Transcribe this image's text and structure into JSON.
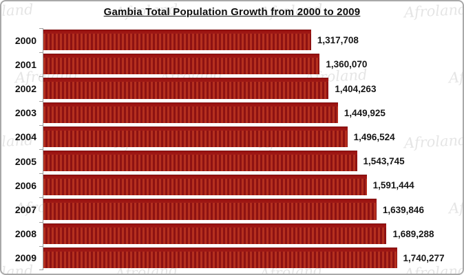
{
  "title": "Gambia Total Population Growth from 2000 to 2009",
  "watermark": {
    "text": "Afroland",
    "color": "#aaaaaa"
  },
  "frame": {
    "background": "#ffffff",
    "border_color": "#a8a8a8"
  },
  "chart_data": {
    "type": "bar",
    "orientation": "horizontal",
    "title": "Gambia Total Population Growth from 2000 to 2009",
    "xlabel": "",
    "ylabel": "",
    "categories": [
      "2000",
      "2001",
      "2002",
      "2003",
      "2004",
      "2005",
      "2006",
      "2007",
      "2008",
      "2009"
    ],
    "values": [
      1317708,
      1360070,
      1404263,
      1449925,
      1496524,
      1543745,
      1591444,
      1639846,
      1689288,
      1740277
    ],
    "value_labels": [
      "1,317,708",
      "1,360,070",
      "1,404,263",
      "1,449,925",
      "1,496,524",
      "1,543,745",
      "1,591,444",
      "1,639,846",
      "1,689,288",
      "1,740,277"
    ],
    "xlim": [
      0,
      2057000
    ],
    "grid": false,
    "legend": "none",
    "value_labels_position": "right-of-bar",
    "bar_color": "#9c1715",
    "bar_stripe_color": "#b5301f",
    "bar_top_edge_color": "#7c0f0f",
    "axis_line_color": "#9c9c9c",
    "label_color": "#111111"
  }
}
